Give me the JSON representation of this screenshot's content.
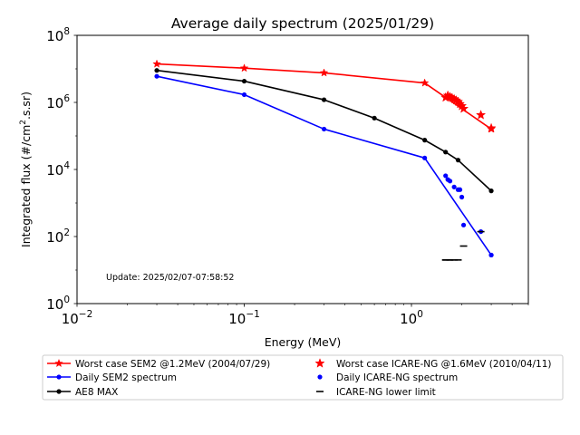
{
  "chart_data": {
    "type": "line",
    "title": "Average daily spectrum (2025/01/29)",
    "xlabel": "Energy (MeV)",
    "ylabel": "Integrated flux (#/cm2.s.sr)",
    "xscale": "log",
    "yscale": "log",
    "xlim": [
      0.01,
      5
    ],
    "ylim": [
      1,
      100000000
    ],
    "x_ticks": [
      {
        "value": 0.01,
        "base": "10",
        "exp": "−2"
      },
      {
        "value": 0.1,
        "base": "10",
        "exp": "−1"
      },
      {
        "value": 1,
        "base": "10",
        "exp": "0"
      }
    ],
    "y_ticks": [
      {
        "value": 1,
        "base": "10",
        "exp": "0"
      },
      {
        "value": 100,
        "base": "10",
        "exp": "2"
      },
      {
        "value": 10000,
        "base": "10",
        "exp": "4"
      },
      {
        "value": 1000000,
        "base": "10",
        "exp": "6"
      },
      {
        "value": 100000000,
        "base": "10",
        "exp": "8"
      }
    ],
    "annotation": "Update: 2025/02/07-07:58:52",
    "legend_position": "below-plot",
    "series": [
      {
        "name": "Worst case SEM2 @1.2MeV (2004/07/29)",
        "color": "#ff0000",
        "style": "line-star",
        "x": [
          0.03,
          0.1,
          0.3,
          1.2,
          3.0
        ],
        "y": [
          14000000,
          10500000,
          7600000,
          3800000,
          160000
        ]
      },
      {
        "name": "Daily SEM2 spectrum",
        "color": "#0000ff",
        "style": "line-dot",
        "x": [
          0.03,
          0.1,
          0.3,
          1.2,
          3.0
        ],
        "y": [
          6000000,
          1700000,
          160000,
          22000,
          28
        ]
      },
      {
        "name": "AE8 MAX",
        "color": "#000000",
        "style": "line-dot",
        "x": [
          0.03,
          0.1,
          0.3,
          0.6,
          1.2,
          1.6,
          1.9,
          3.0
        ],
        "y": [
          9000000,
          4300000,
          1200000,
          340000,
          75000,
          33000,
          19000,
          2300
        ]
      },
      {
        "name": "Worst case ICARE-NG @1.6MeV (2010/04/11)",
        "color": "#ff0000",
        "style": "star",
        "x": [
          1.6,
          1.65,
          1.7,
          1.75,
          1.8,
          1.85,
          1.9,
          1.95,
          2.0,
          2.05,
          2.6,
          3.0
        ],
        "y": [
          1400000,
          1600000,
          1450000,
          1350000,
          1250000,
          1150000,
          1050000,
          900000,
          780000,
          650000,
          420000,
          170000
        ]
      },
      {
        "name": "Daily ICARE-NG spectrum",
        "color": "#0000ff",
        "style": "dot",
        "x": [
          1.6,
          1.65,
          1.7,
          1.8,
          1.9,
          1.95,
          2.0,
          2.05,
          2.6,
          3.0
        ],
        "y": [
          6500,
          5000,
          4500,
          3000,
          2500,
          2500,
          1500,
          220,
          140,
          28
        ]
      },
      {
        "name": "ICARE-NG lower limit",
        "color": "#000000",
        "style": "dash",
        "x": [
          1.6,
          1.7,
          1.8,
          1.9,
          2.05,
          2.6
        ],
        "y": [
          20,
          20,
          20,
          20,
          52,
          140
        ]
      }
    ]
  }
}
